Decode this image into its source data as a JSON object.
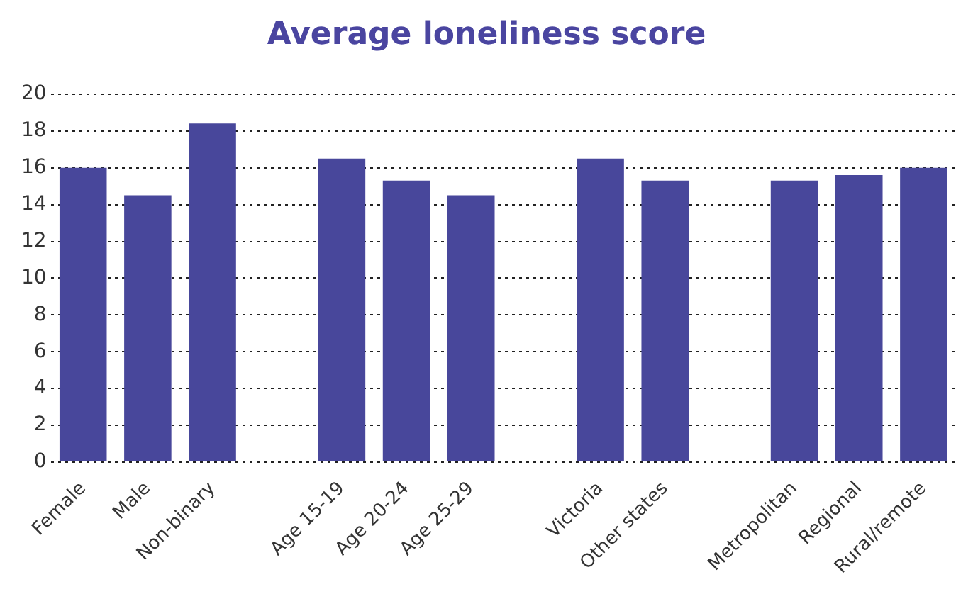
{
  "chart_data": {
    "type": "bar",
    "title": "Average loneliness score",
    "categories": [
      "Female",
      "Male",
      "Non-binary",
      null,
      "Age 15-19",
      "Age 20-24",
      "Age 25-29",
      null,
      "Victoria",
      "Other states",
      null,
      "Metropolitan",
      "Regional",
      "Rural/remote"
    ],
    "values": [
      16.0,
      14.5,
      18.4,
      null,
      16.5,
      15.3,
      14.5,
      null,
      16.5,
      15.3,
      null,
      15.3,
      15.6,
      16.0
    ],
    "color": "#48479b",
    "ylim": [
      0,
      20
    ],
    "yticks": [
      0,
      2,
      4,
      6,
      8,
      10,
      12,
      14,
      16,
      18,
      20
    ],
    "grid": "y",
    "legend": false
  }
}
